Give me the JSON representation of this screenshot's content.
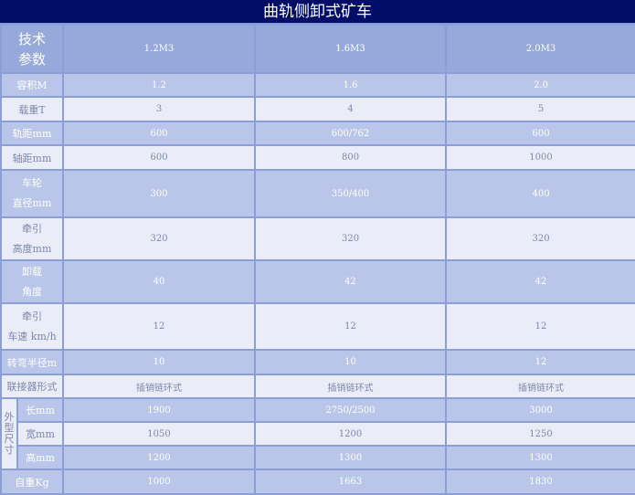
{
  "title": "曲轨侧卸式矿车",
  "header": {
    "label_line1": "技术",
    "label_line2": "参数",
    "models": [
      "1.2M3",
      "1.6M3",
      "2.0M3"
    ]
  },
  "rows": [
    {
      "label": [
        "容积M"
      ],
      "values": [
        "1.2",
        "1.6",
        "2.0"
      ],
      "style": "dark"
    },
    {
      "label": [
        "载重T"
      ],
      "values": [
        "3",
        "4",
        "5"
      ],
      "style": "light"
    },
    {
      "label": [
        "轨距mm"
      ],
      "values": [
        "600",
        "600/762",
        "600"
      ],
      "style": "dark"
    },
    {
      "label": [
        "轴距mm"
      ],
      "values": [
        "600",
        "800",
        "1000"
      ],
      "style": "light"
    },
    {
      "label": [
        "车轮",
        "直径mm"
      ],
      "values": [
        "300",
        "350/400",
        "400"
      ],
      "style": "dark"
    },
    {
      "label": [
        "牵引",
        "高度mm"
      ],
      "values": [
        "320",
        "320",
        "320"
      ],
      "style": "light"
    },
    {
      "label": [
        "卸载",
        "角度"
      ],
      "values": [
        "40",
        "42",
        "42"
      ],
      "style": "dark"
    },
    {
      "label": [
        "牵引",
        "车速 km/h"
      ],
      "values": [
        "12",
        "12",
        "12"
      ],
      "style": "light"
    },
    {
      "label": [
        "转弯半径m"
      ],
      "values": [
        "10",
        "10",
        "12"
      ],
      "style": "dark"
    },
    {
      "label": [
        "联接器形式"
      ],
      "values": [
        "插销链环式",
        "插销链环式",
        "插销链环式"
      ],
      "style": "light"
    }
  ],
  "dimensions": {
    "group_label": "外型尺寸",
    "rows": [
      {
        "label": "长mm",
        "values": [
          "1900",
          "2750/2500",
          "3000"
        ],
        "style": "dark"
      },
      {
        "label": "宽mm",
        "values": [
          "1050",
          "1200",
          "1250"
        ],
        "style": "light"
      },
      {
        "label": "高mm",
        "values": [
          "1200",
          "1300",
          "1300"
        ],
        "style": "dark"
      }
    ]
  },
  "weight": {
    "label": "自重Kg",
    "values": [
      "1000",
      "1663",
      "1830"
    ],
    "style": "dark"
  }
}
